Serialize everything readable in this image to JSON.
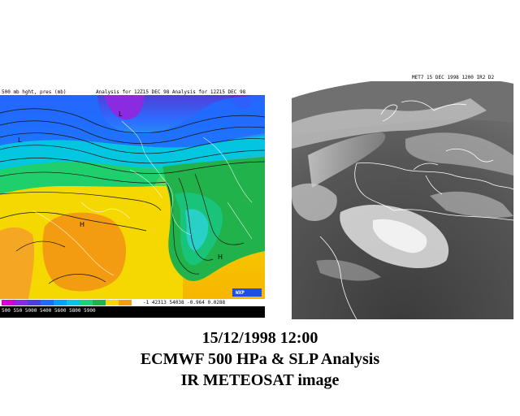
{
  "left_map": {
    "header_left": "500 mb hght, pres (mb)",
    "header_right": "Analysis for 12Z15 DEC 98 Analysis for 12Z15 DEC 98",
    "footer_left": "500  550  5000  5400  5600  5800  5900",
    "footer_right": "-1 42313  54038  -0.964  0.0288",
    "logo": "WXP",
    "map_labels": [
      "L",
      "H",
      "L",
      "H"
    ],
    "colors": {
      "purple": "#8a2be2",
      "blue": "#1e6cff",
      "cyan": "#00c8e0",
      "green": "#22b24c",
      "yellow": "#f6e000",
      "orange": "#f39c12"
    }
  },
  "right_image": {
    "header": "MET7 15 DEC 1998 1200 IR2 D2"
  },
  "caption": {
    "line1": "15/12/1998 12:00",
    "line2": "ECMWF 500 HPa & SLP Analysis",
    "line3": "IR METEOSAT image"
  }
}
